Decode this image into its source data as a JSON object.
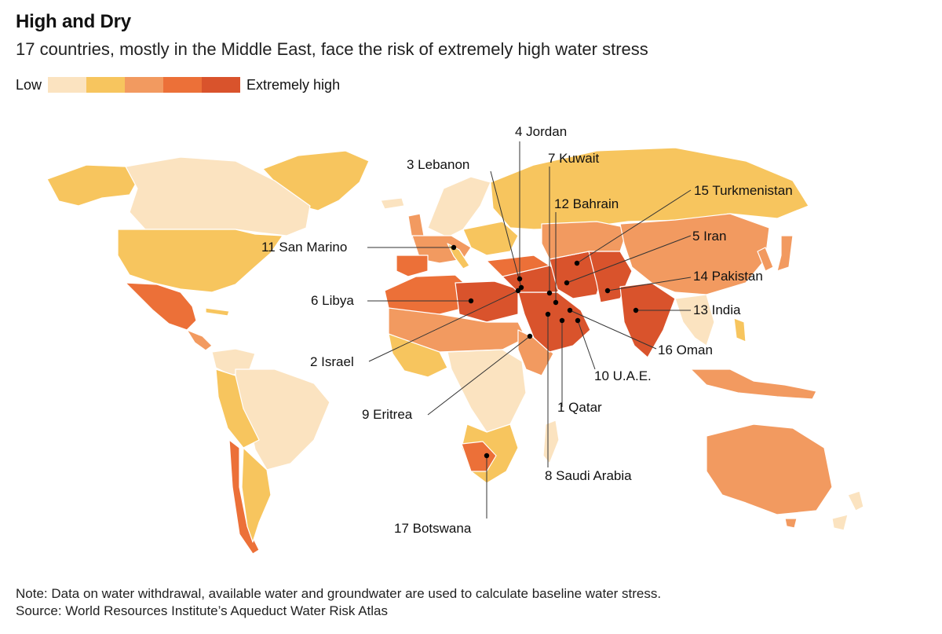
{
  "header": {
    "title": "High and Dry",
    "subtitle": "17 countries, mostly in the Middle East, face the risk of extremely high water stress"
  },
  "legend": {
    "low_label": "Low",
    "high_label": "Extremely high",
    "colors": [
      "#fbe3c0",
      "#f7c55e",
      "#f29a60",
      "#ec7038",
      "#d9532c"
    ]
  },
  "map_data": {
    "colors": {
      "low": "#fbe3c0",
      "low_medium": "#f7c55e",
      "medium_high": "#f29a60",
      "high": "#ec7038",
      "extremely_high": "#d9532c",
      "no_data": "#e4e4e4",
      "border": "#ffffff"
    },
    "countries": [
      {
        "rank": 1,
        "label": "1 Qatar"
      },
      {
        "rank": 2,
        "label": "2 Israel"
      },
      {
        "rank": 3,
        "label": "3 Lebanon"
      },
      {
        "rank": 4,
        "label": "4 Jordan"
      },
      {
        "rank": 5,
        "label": "5 Iran"
      },
      {
        "rank": 6,
        "label": "6 Libya"
      },
      {
        "rank": 7,
        "label": "7 Kuwait"
      },
      {
        "rank": 8,
        "label": "8 Saudi Arabia"
      },
      {
        "rank": 9,
        "label": "9 Eritrea"
      },
      {
        "rank": 10,
        "label": "10 U.A.E."
      },
      {
        "rank": 11,
        "label": "11 San Marino"
      },
      {
        "rank": 12,
        "label": "12 Bahrain"
      },
      {
        "rank": 13,
        "label": "13 India"
      },
      {
        "rank": 14,
        "label": "14 Pakistan"
      },
      {
        "rank": 15,
        "label": "15 Turkmenistan"
      },
      {
        "rank": 16,
        "label": "16 Oman"
      },
      {
        "rank": 17,
        "label": "17 Botswana"
      }
    ]
  },
  "footer": {
    "note": "Note: Data on water withdrawal, available water and groundwater are used to calculate baseline water stress.",
    "source": "Source: World Resources Institute’s Aqueduct Water Risk Atlas"
  }
}
